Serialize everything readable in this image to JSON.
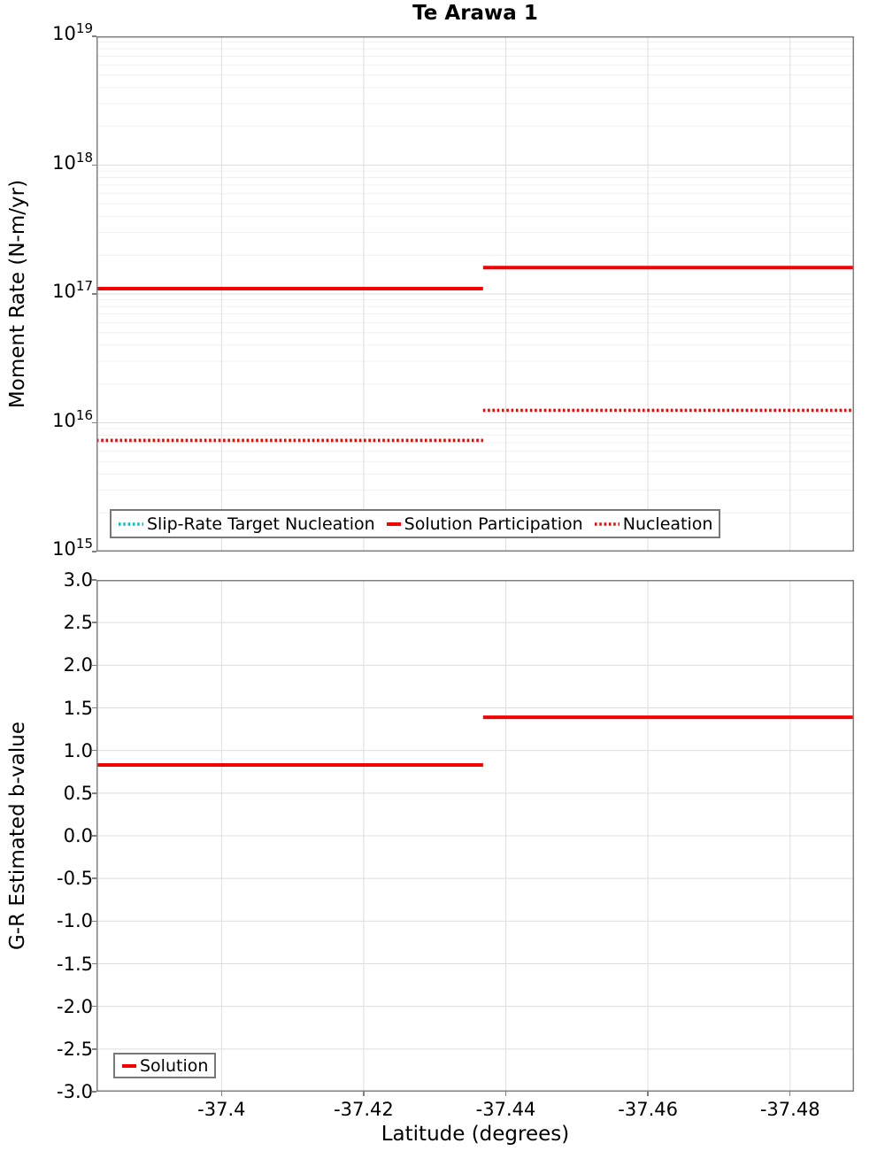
{
  "chart_data": [
    {
      "type": "line",
      "title": "Te Arawa 1",
      "ylabel": "Moment Rate (N-m/yr)",
      "y_scale": "log",
      "y_range_exponents": [
        15,
        19
      ],
      "y_ticks": [
        {
          "base": "10",
          "exp": "19"
        },
        {
          "base": "10",
          "exp": "18"
        },
        {
          "base": "10",
          "exp": "17"
        },
        {
          "base": "10",
          "exp": "16"
        },
        {
          "base": "10",
          "exp": "15"
        }
      ],
      "x_range": [
        -37.3824,
        -37.489
      ],
      "x_ticks": [
        {
          "value": -37.4,
          "label": "-37.4"
        },
        {
          "value": -37.42,
          "label": "-37.42"
        },
        {
          "value": -37.44,
          "label": "-37.44"
        },
        {
          "value": -37.46,
          "label": "-37.46"
        },
        {
          "value": -37.48,
          "label": "-37.48"
        }
      ],
      "grid": true,
      "legend_position": "bottom-left",
      "step_latitude": -37.4368,
      "series": [
        {
          "name": "Slip-Rate Target Nucleation",
          "color": "#00BFBF",
          "line_style": "dotted",
          "segments": [
            {
              "x": [
                -37.3824,
                -37.4368
              ],
              "y": 7300000000000000.0
            },
            {
              "x": [
                -37.4368,
                -37.489
              ],
              "y": 1.25e+16
            }
          ]
        },
        {
          "name": "Solution Participation",
          "color": "#F40000",
          "line_style": "solid",
          "segments": [
            {
              "x": [
                -37.3824,
                -37.4368
              ],
              "y": 1.1e+17
            },
            {
              "x": [
                -37.4368,
                -37.489
              ],
              "y": 1.6e+17
            }
          ]
        },
        {
          "name": "Nucleation",
          "color": "#F40000",
          "line_style": "dotted",
          "segments": [
            {
              "x": [
                -37.3824,
                -37.4368
              ],
              "y": 7300000000000000.0
            },
            {
              "x": [
                -37.4368,
                -37.489
              ],
              "y": 1.25e+16
            }
          ]
        }
      ]
    },
    {
      "type": "line",
      "xlabel": "Latitude (degrees)",
      "ylabel": "G-R Estimated b-value",
      "y_scale": "linear",
      "y_range": [
        -3.0,
        3.0
      ],
      "y_ticks": [
        {
          "value": 3.0,
          "label": "3.0"
        },
        {
          "value": 2.5,
          "label": "2.5"
        },
        {
          "value": 2.0,
          "label": "2.0"
        },
        {
          "value": 1.5,
          "label": "1.5"
        },
        {
          "value": 1.0,
          "label": "1.0"
        },
        {
          "value": 0.5,
          "label": "0.5"
        },
        {
          "value": 0.0,
          "label": "0.0"
        },
        {
          "value": -0.5,
          "label": "-0.5"
        },
        {
          "value": -1.0,
          "label": "-1.0"
        },
        {
          "value": -1.5,
          "label": "-1.5"
        },
        {
          "value": -2.0,
          "label": "-2.0"
        },
        {
          "value": -2.5,
          "label": "-2.5"
        },
        {
          "value": -3.0,
          "label": "-3.0"
        }
      ],
      "x_shared_with_chart": 0,
      "grid": true,
      "legend_position": "bottom-left",
      "step_latitude": -37.4368,
      "series": [
        {
          "name": "Solution",
          "color": "#F40000",
          "line_style": "solid",
          "segments": [
            {
              "x": [
                -37.3824,
                -37.4368
              ],
              "y": 0.83
            },
            {
              "x": [
                -37.4368,
                -37.489
              ],
              "y": 1.39
            }
          ]
        }
      ]
    }
  ],
  "colors": {
    "frame": "#808080",
    "grid_major": "#dedede",
    "grid_minor": "#f0f0f0",
    "legend_border": "#787878"
  }
}
